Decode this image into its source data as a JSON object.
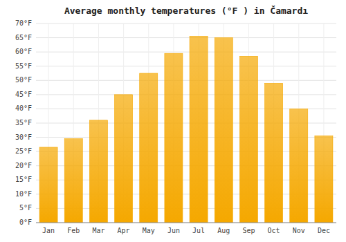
{
  "chart_data": {
    "type": "bar",
    "title": "Average monthly temperatures (°F ) in Čamardı",
    "categories": [
      "Jan",
      "Feb",
      "Mar",
      "Apr",
      "May",
      "Jun",
      "Jul",
      "Aug",
      "Sep",
      "Oct",
      "Nov",
      "Dec"
    ],
    "values": [
      26.5,
      29.5,
      36.0,
      45.0,
      52.5,
      59.5,
      65.5,
      65.0,
      58.5,
      49.0,
      40.0,
      30.5
    ],
    "color": "#F5A800",
    "ylim": [
      0,
      70
    ],
    "yticks": [
      {
        "value": 0,
        "label": "0°F"
      },
      {
        "value": 5,
        "label": "5°F"
      },
      {
        "value": 10,
        "label": "10°F"
      },
      {
        "value": 15,
        "label": "15°F"
      },
      {
        "value": 20,
        "label": "20°F"
      },
      {
        "value": 25,
        "label": "25°F"
      },
      {
        "value": 30,
        "label": "30°F"
      },
      {
        "value": 35,
        "label": "35°F"
      },
      {
        "value": 40,
        "label": "40°F"
      },
      {
        "value": 45,
        "label": "45°F"
      },
      {
        "value": 50,
        "label": "50°F"
      },
      {
        "value": 55,
        "label": "55°F"
      },
      {
        "value": 60,
        "label": "60°F"
      },
      {
        "value": 65,
        "label": "65°F"
      },
      {
        "value": 70,
        "label": "70°F"
      }
    ],
    "grid": true
  }
}
